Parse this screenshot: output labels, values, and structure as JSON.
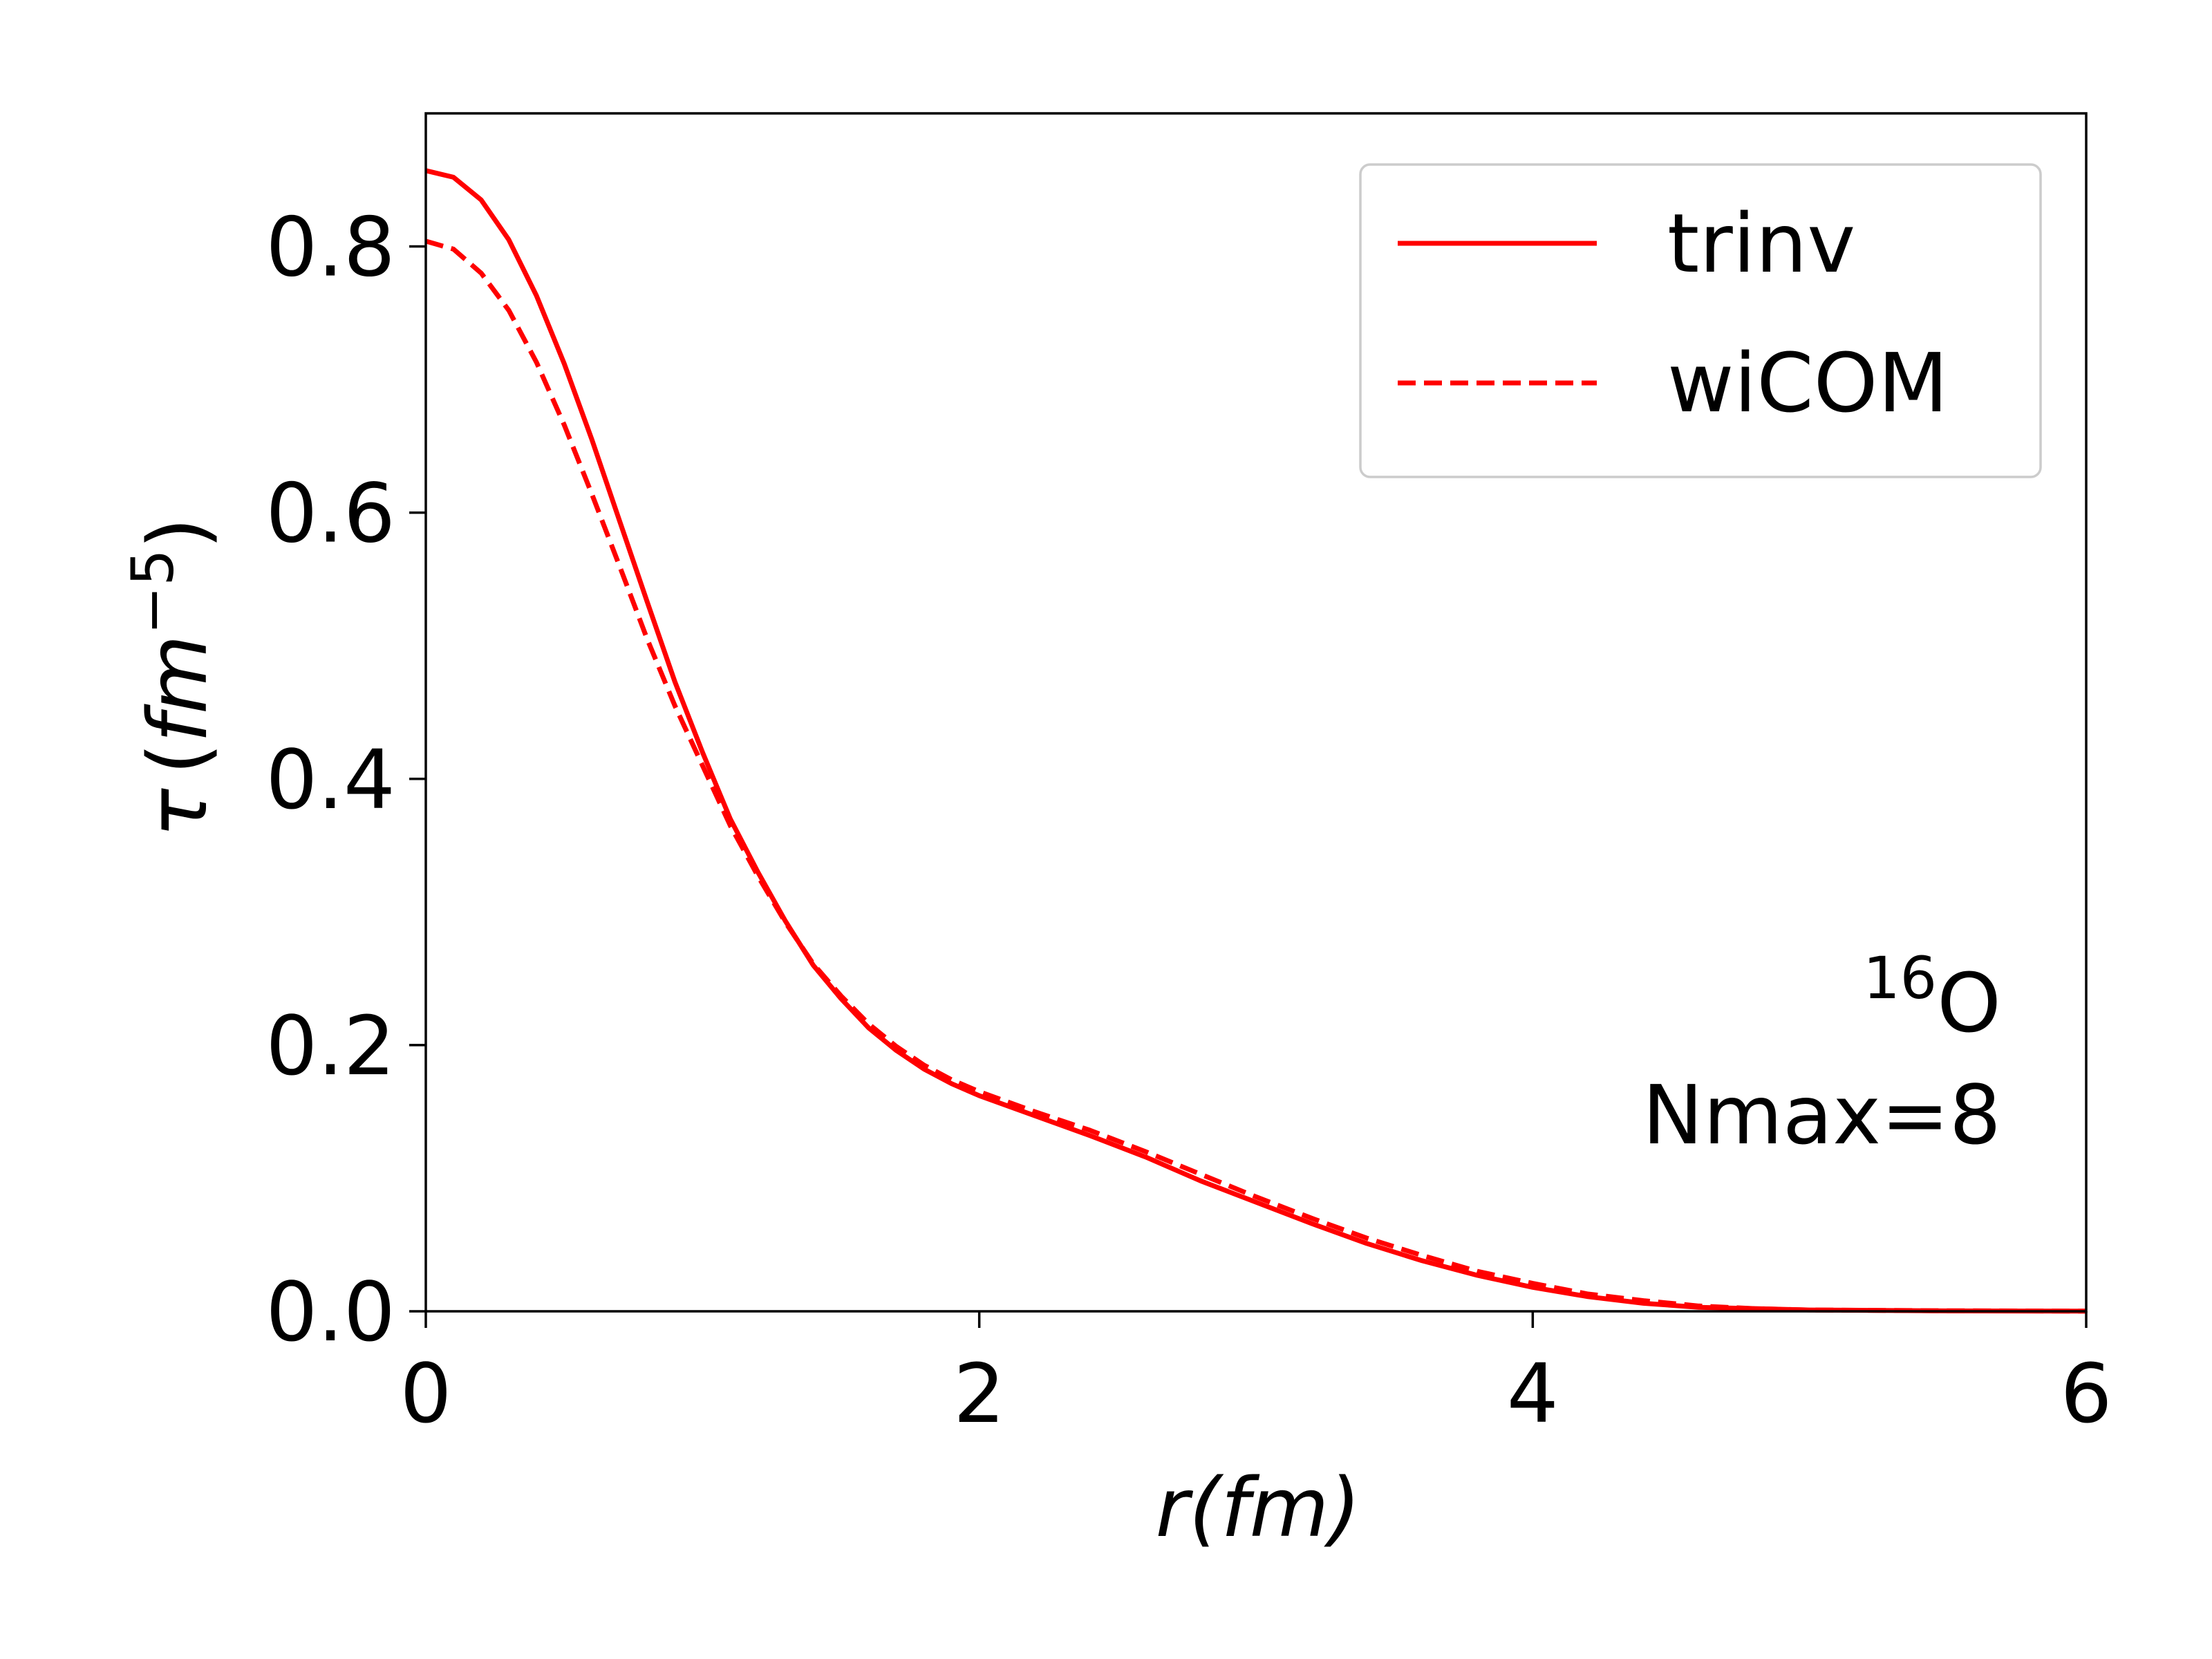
{
  "chart_data": {
    "type": "line",
    "xlabel": "r(fm)",
    "ylabel": "τ (fm⁻⁵)",
    "ylabel_parts": {
      "symbol": "τ",
      "open": "(",
      "unit": "fm",
      "exp": "−5",
      "close": ")"
    },
    "xlim": [
      0,
      6
    ],
    "ylim": [
      0,
      0.9
    ],
    "x_ticks": [
      0,
      2,
      4,
      6
    ],
    "x_tick_labels": [
      "0",
      "2",
      "4",
      "6"
    ],
    "y_ticks": [
      0.0,
      0.2,
      0.4,
      0.6,
      0.8
    ],
    "y_tick_labels": [
      "0.0",
      "0.2",
      "0.4",
      "0.6",
      "0.8"
    ],
    "grid": false,
    "legend_position": "top-right",
    "annotation": {
      "isotope_mass": "16",
      "isotope_symbol": "O",
      "line2": "Nmax=8"
    },
    "series": [
      {
        "name": "trinv",
        "style": "solid",
        "color": "#ff0000",
        "x": [
          0,
          0.1,
          0.2,
          0.3,
          0.4,
          0.5,
          0.6,
          0.7,
          0.8,
          0.9,
          1.0,
          1.1,
          1.2,
          1.3,
          1.4,
          1.5,
          1.6,
          1.7,
          1.8,
          1.9,
          2.0,
          2.2,
          2.4,
          2.6,
          2.8,
          3.0,
          3.2,
          3.4,
          3.6,
          3.8,
          4.0,
          4.2,
          4.4,
          4.6,
          4.8,
          5.0,
          5.5,
          6.0
        ],
        "y": [
          0.857,
          0.852,
          0.835,
          0.805,
          0.763,
          0.712,
          0.655,
          0.594,
          0.533,
          0.473,
          0.42,
          0.37,
          0.33,
          0.293,
          0.26,
          0.235,
          0.213,
          0.196,
          0.182,
          0.171,
          0.162,
          0.147,
          0.132,
          0.116,
          0.098,
          0.082,
          0.066,
          0.051,
          0.038,
          0.027,
          0.018,
          0.011,
          0.006,
          0.003,
          0.002,
          0.001,
          0.0003,
          0.0001
        ]
      },
      {
        "name": "wiCOM",
        "style": "dashed",
        "color": "#ff0000",
        "x": [
          0,
          0.1,
          0.2,
          0.3,
          0.4,
          0.5,
          0.6,
          0.7,
          0.8,
          0.9,
          1.0,
          1.1,
          1.2,
          1.3,
          1.4,
          1.5,
          1.6,
          1.7,
          1.8,
          1.9,
          2.0,
          2.2,
          2.4,
          2.6,
          2.8,
          3.0,
          3.2,
          3.4,
          3.6,
          3.8,
          4.0,
          4.2,
          4.4,
          4.6,
          4.8,
          5.0,
          5.5,
          6.0
        ],
        "y": [
          0.804,
          0.798,
          0.78,
          0.752,
          0.713,
          0.666,
          0.614,
          0.56,
          0.505,
          0.455,
          0.41,
          0.365,
          0.327,
          0.292,
          0.261,
          0.237,
          0.216,
          0.199,
          0.185,
          0.174,
          0.165,
          0.15,
          0.136,
          0.12,
          0.103,
          0.086,
          0.07,
          0.055,
          0.042,
          0.03,
          0.021,
          0.013,
          0.008,
          0.004,
          0.002,
          0.001,
          0.0004,
          0.0001
        ]
      }
    ]
  }
}
